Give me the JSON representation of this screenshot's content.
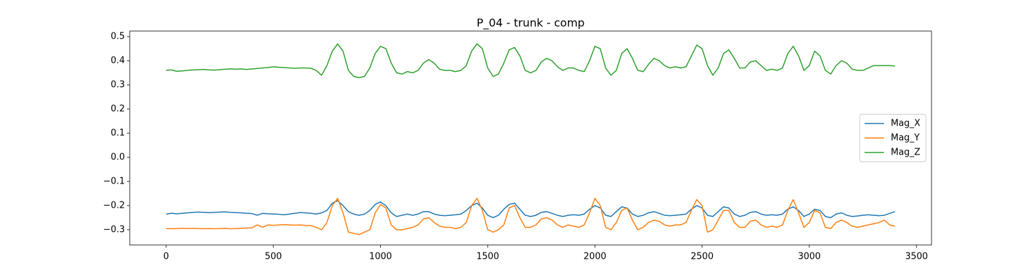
{
  "chart_data": {
    "type": "line",
    "title": "P_04 - trunk - comp",
    "x": [
      0,
      25,
      50,
      75,
      100,
      125,
      150,
      175,
      200,
      225,
      250,
      275,
      300,
      325,
      350,
      375,
      400,
      425,
      450,
      475,
      500,
      525,
      550,
      575,
      600,
      625,
      650,
      675,
      700,
      725,
      750,
      775,
      800,
      825,
      850,
      875,
      900,
      925,
      950,
      975,
      1000,
      1025,
      1050,
      1075,
      1100,
      1125,
      1150,
      1175,
      1200,
      1225,
      1250,
      1275,
      1300,
      1325,
      1350,
      1375,
      1400,
      1425,
      1450,
      1475,
      1500,
      1525,
      1550,
      1575,
      1600,
      1625,
      1650,
      1675,
      1700,
      1725,
      1750,
      1775,
      1800,
      1825,
      1850,
      1875,
      1900,
      1925,
      1950,
      1975,
      2000,
      2025,
      2050,
      2075,
      2100,
      2125,
      2150,
      2175,
      2200,
      2225,
      2250,
      2275,
      2300,
      2325,
      2350,
      2375,
      2400,
      2425,
      2450,
      2475,
      2500,
      2525,
      2550,
      2575,
      2600,
      2625,
      2650,
      2675,
      2700,
      2725,
      2750,
      2775,
      2800,
      2825,
      2850,
      2875,
      2900,
      2925,
      2950,
      2975,
      3000,
      3025,
      3050,
      3075,
      3100,
      3125,
      3150,
      3175,
      3200,
      3225,
      3250,
      3275,
      3300,
      3325,
      3350,
      3375,
      3400
    ],
    "series": [
      {
        "name": "Mag_X",
        "color": "#1f77b4",
        "values": [
          -0.235,
          -0.232,
          -0.234,
          -0.232,
          -0.23,
          -0.228,
          -0.227,
          -0.228,
          -0.229,
          -0.228,
          -0.227,
          -0.226,
          -0.228,
          -0.229,
          -0.23,
          -0.232,
          -0.233,
          -0.24,
          -0.232,
          -0.234,
          -0.235,
          -0.236,
          -0.238,
          -0.235,
          -0.232,
          -0.229,
          -0.23,
          -0.232,
          -0.235,
          -0.23,
          -0.22,
          -0.19,
          -0.18,
          -0.2,
          -0.225,
          -0.235,
          -0.24,
          -0.235,
          -0.22,
          -0.195,
          -0.185,
          -0.2,
          -0.23,
          -0.245,
          -0.24,
          -0.235,
          -0.24,
          -0.235,
          -0.225,
          -0.225,
          -0.235,
          -0.24,
          -0.242,
          -0.24,
          -0.238,
          -0.235,
          -0.22,
          -0.2,
          -0.19,
          -0.21,
          -0.24,
          -0.25,
          -0.24,
          -0.215,
          -0.195,
          -0.19,
          -0.215,
          -0.24,
          -0.245,
          -0.24,
          -0.228,
          -0.225,
          -0.232,
          -0.24,
          -0.245,
          -0.24,
          -0.238,
          -0.24,
          -0.235,
          -0.215,
          -0.2,
          -0.21,
          -0.24,
          -0.245,
          -0.225,
          -0.205,
          -0.21,
          -0.235,
          -0.245,
          -0.24,
          -0.23,
          -0.225,
          -0.232,
          -0.24,
          -0.242,
          -0.24,
          -0.238,
          -0.235,
          -0.215,
          -0.2,
          -0.21,
          -0.24,
          -0.245,
          -0.225,
          -0.205,
          -0.21,
          -0.235,
          -0.245,
          -0.24,
          -0.228,
          -0.225,
          -0.235,
          -0.24,
          -0.238,
          -0.24,
          -0.235,
          -0.215,
          -0.205,
          -0.22,
          -0.245,
          -0.235,
          -0.215,
          -0.22,
          -0.245,
          -0.25,
          -0.235,
          -0.23,
          -0.24,
          -0.245,
          -0.243,
          -0.24,
          -0.238,
          -0.24,
          -0.242,
          -0.24,
          -0.232,
          -0.225
        ]
      },
      {
        "name": "Mag_Y",
        "color": "#ff7f0e",
        "values": [
          -0.295,
          -0.296,
          -0.295,
          -0.294,
          -0.295,
          -0.294,
          -0.295,
          -0.296,
          -0.295,
          -0.296,
          -0.295,
          -0.294,
          -0.296,
          -0.295,
          -0.294,
          -0.293,
          -0.292,
          -0.28,
          -0.29,
          -0.28,
          -0.282,
          -0.28,
          -0.279,
          -0.28,
          -0.281,
          -0.28,
          -0.282,
          -0.283,
          -0.29,
          -0.3,
          -0.27,
          -0.2,
          -0.17,
          -0.23,
          -0.31,
          -0.315,
          -0.32,
          -0.31,
          -0.3,
          -0.23,
          -0.195,
          -0.21,
          -0.28,
          -0.3,
          -0.3,
          -0.295,
          -0.29,
          -0.28,
          -0.255,
          -0.25,
          -0.27,
          -0.285,
          -0.29,
          -0.29,
          -0.295,
          -0.29,
          -0.27,
          -0.2,
          -0.17,
          -0.22,
          -0.3,
          -0.31,
          -0.3,
          -0.28,
          -0.21,
          -0.2,
          -0.25,
          -0.29,
          -0.29,
          -0.28,
          -0.255,
          -0.25,
          -0.26,
          -0.28,
          -0.29,
          -0.28,
          -0.285,
          -0.29,
          -0.28,
          -0.23,
          -0.17,
          -0.2,
          -0.29,
          -0.3,
          -0.27,
          -0.22,
          -0.21,
          -0.26,
          -0.3,
          -0.29,
          -0.27,
          -0.26,
          -0.265,
          -0.28,
          -0.285,
          -0.28,
          -0.28,
          -0.27,
          -0.22,
          -0.175,
          -0.2,
          -0.31,
          -0.3,
          -0.26,
          -0.22,
          -0.22,
          -0.27,
          -0.29,
          -0.29,
          -0.265,
          -0.26,
          -0.28,
          -0.29,
          -0.285,
          -0.29,
          -0.28,
          -0.22,
          -0.175,
          -0.23,
          -0.29,
          -0.27,
          -0.22,
          -0.23,
          -0.29,
          -0.295,
          -0.27,
          -0.26,
          -0.27,
          -0.285,
          -0.29,
          -0.285,
          -0.28,
          -0.275,
          -0.27,
          -0.26,
          -0.28,
          -0.285
        ]
      },
      {
        "name": "Mag_Z",
        "color": "#2ca02c",
        "values": [
          0.36,
          0.362,
          0.356,
          0.358,
          0.36,
          0.362,
          0.363,
          0.364,
          0.362,
          0.361,
          0.363,
          0.365,
          0.366,
          0.365,
          0.366,
          0.364,
          0.366,
          0.368,
          0.37,
          0.372,
          0.375,
          0.373,
          0.372,
          0.37,
          0.369,
          0.37,
          0.37,
          0.369,
          0.36,
          0.34,
          0.38,
          0.44,
          0.47,
          0.44,
          0.36,
          0.335,
          0.33,
          0.335,
          0.37,
          0.43,
          0.46,
          0.45,
          0.39,
          0.35,
          0.345,
          0.355,
          0.35,
          0.36,
          0.39,
          0.405,
          0.39,
          0.365,
          0.36,
          0.36,
          0.355,
          0.36,
          0.38,
          0.44,
          0.47,
          0.45,
          0.37,
          0.335,
          0.345,
          0.39,
          0.445,
          0.455,
          0.42,
          0.36,
          0.35,
          0.36,
          0.395,
          0.41,
          0.4,
          0.375,
          0.36,
          0.37,
          0.37,
          0.36,
          0.355,
          0.4,
          0.46,
          0.45,
          0.37,
          0.34,
          0.36,
          0.43,
          0.45,
          0.41,
          0.36,
          0.355,
          0.385,
          0.41,
          0.4,
          0.38,
          0.37,
          0.375,
          0.37,
          0.375,
          0.42,
          0.465,
          0.45,
          0.38,
          0.34,
          0.37,
          0.43,
          0.445,
          0.41,
          0.37,
          0.37,
          0.395,
          0.4,
          0.38,
          0.36,
          0.365,
          0.36,
          0.37,
          0.43,
          0.46,
          0.42,
          0.36,
          0.38,
          0.44,
          0.42,
          0.36,
          0.345,
          0.38,
          0.4,
          0.39,
          0.365,
          0.36,
          0.36,
          0.37,
          0.38,
          0.38,
          0.38,
          0.38,
          0.378
        ]
      }
    ],
    "xlim": [
      -170,
      3570
    ],
    "ylim": [
      -0.363,
      0.523
    ],
    "xticks": [
      0,
      500,
      1000,
      1500,
      2000,
      2500,
      3000,
      3500
    ],
    "yticks": [
      {
        "value": -0.3,
        "label": "−0.3"
      },
      {
        "value": -0.2,
        "label": "−0.2"
      },
      {
        "value": -0.1,
        "label": "−0.1"
      },
      {
        "value": 0,
        "label": "0.0"
      },
      0.1,
      0.2,
      0.3,
      0.4,
      0.5
    ],
    "grid": false,
    "legend": "center right"
  }
}
